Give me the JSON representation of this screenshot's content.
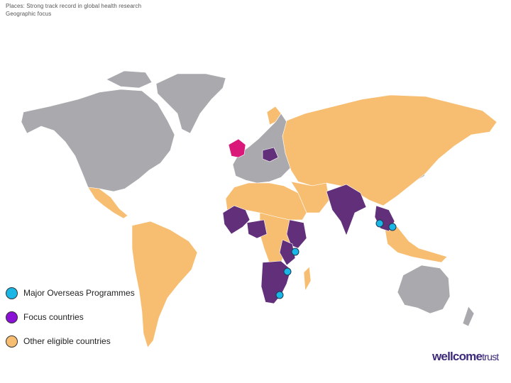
{
  "header": {
    "line1": "Places: Strong track record in global health research",
    "line2": "Geographic focus"
  },
  "legend": [
    {
      "label": "Major Overseas Programmes",
      "color": "#1ab6e6"
    },
    {
      "label": "Focus countries",
      "color": "#8a12d6"
    },
    {
      "label": "Other eligible countries",
      "color": "#f7be72"
    }
  ],
  "colors": {
    "ineligible": "#a9a9ae",
    "focus": "#62307a",
    "eligible": "#f7be72",
    "uk": "#d9187a",
    "programme": "#1ab6e6"
  },
  "logo": {
    "main": "wellcome",
    "sub": "trust"
  }
}
